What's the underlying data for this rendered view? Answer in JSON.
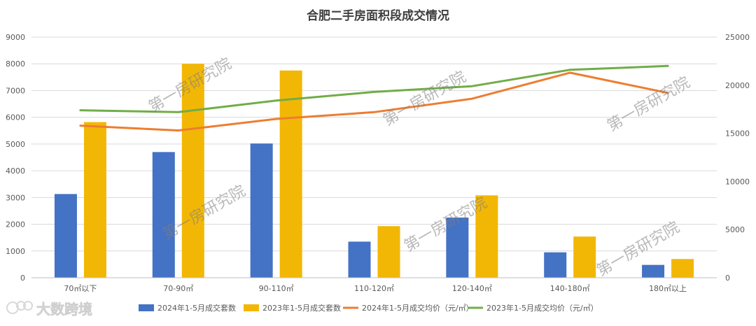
{
  "chart_data": {
    "type": "bar",
    "title": "合肥二手房面积段成交情况",
    "categories": [
      "70㎡以下",
      "70-90㎡",
      "90-110㎡",
      "110-120㎡",
      "120-140㎡",
      "140-180㎡",
      "180㎡以上"
    ],
    "series": [
      {
        "name": "2024年1-5月成交套数",
        "type": "bar",
        "axis": "left",
        "color": "#4472C4",
        "values": [
          3130,
          4700,
          5020,
          1350,
          2250,
          950,
          480
        ]
      },
      {
        "name": "2023年1-5月成交套数",
        "type": "bar",
        "axis": "left",
        "color": "#F2B705",
        "values": [
          5820,
          8000,
          7750,
          1930,
          3080,
          1540,
          700
        ]
      },
      {
        "name": "2024年1-5月成交均价（元/㎡）",
        "type": "line",
        "axis": "right",
        "color": "#ED7D31",
        "values": [
          15800,
          15300,
          16500,
          17200,
          18600,
          21300,
          19200
        ]
      },
      {
        "name": "2023年1-5月成交均价（元/㎡）",
        "type": "line",
        "axis": "right",
        "color": "#70AD47",
        "values": [
          17400,
          17200,
          18400,
          19300,
          19900,
          21600,
          22000
        ]
      }
    ],
    "ylim_left": [
      0,
      9000
    ],
    "yticks_left": [
      0,
      1000,
      2000,
      3000,
      4000,
      5000,
      6000,
      7000,
      8000,
      9000
    ],
    "ylim_right": [
      0,
      25000
    ],
    "yticks_right": [
      0,
      5000,
      10000,
      15000,
      20000,
      25000
    ],
    "grid": true,
    "legend_position": "bottom"
  },
  "watermarks": [
    "第一房研究院",
    "第一房研究院",
    "第一房研究院",
    "第一房研究院",
    "第一房研究院",
    "第一房研究院"
  ],
  "brand": {
    "logo_text": "大数跨境"
  }
}
